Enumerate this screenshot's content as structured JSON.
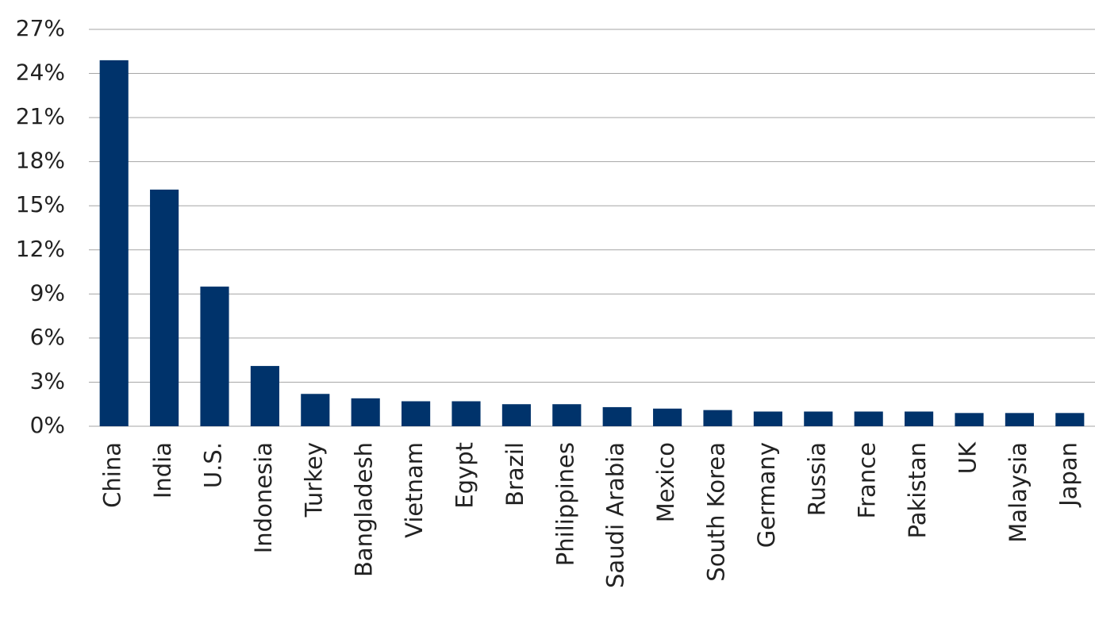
{
  "chart_data": {
    "type": "bar",
    "categories": [
      "China",
      "India",
      "U.S.",
      "Indonesia",
      "Turkey",
      "Bangladesh",
      "Vietnam",
      "Egypt",
      "Brazil",
      "Philippines",
      "Saudi Arabia",
      "Mexico",
      "South Korea",
      "Germany",
      "Russia",
      "France",
      "Pakistan",
      "UK",
      "Malaysia",
      "Japan"
    ],
    "values": [
      24.9,
      16.1,
      9.5,
      4.1,
      2.2,
      1.9,
      1.7,
      1.7,
      1.5,
      1.5,
      1.3,
      1.2,
      1.1,
      1.0,
      1.0,
      1.0,
      1.0,
      0.9,
      0.9,
      0.9
    ],
    "color": "#00336b",
    "ylim": [
      0,
      27
    ],
    "yticks": [
      {
        "value": 0,
        "label": "0%"
      },
      {
        "value": 3,
        "label": "3%"
      },
      {
        "value": 6,
        "label": "6%"
      },
      {
        "value": 9,
        "label": "9%"
      },
      {
        "value": 12,
        "label": "12%"
      },
      {
        "value": 15,
        "label": "15%"
      },
      {
        "value": 18,
        "label": "18%"
      },
      {
        "value": 21,
        "label": "21%"
      },
      {
        "value": 24,
        "label": "24%"
      },
      {
        "value": 27,
        "label": "27%"
      }
    ],
    "grid": true
  }
}
